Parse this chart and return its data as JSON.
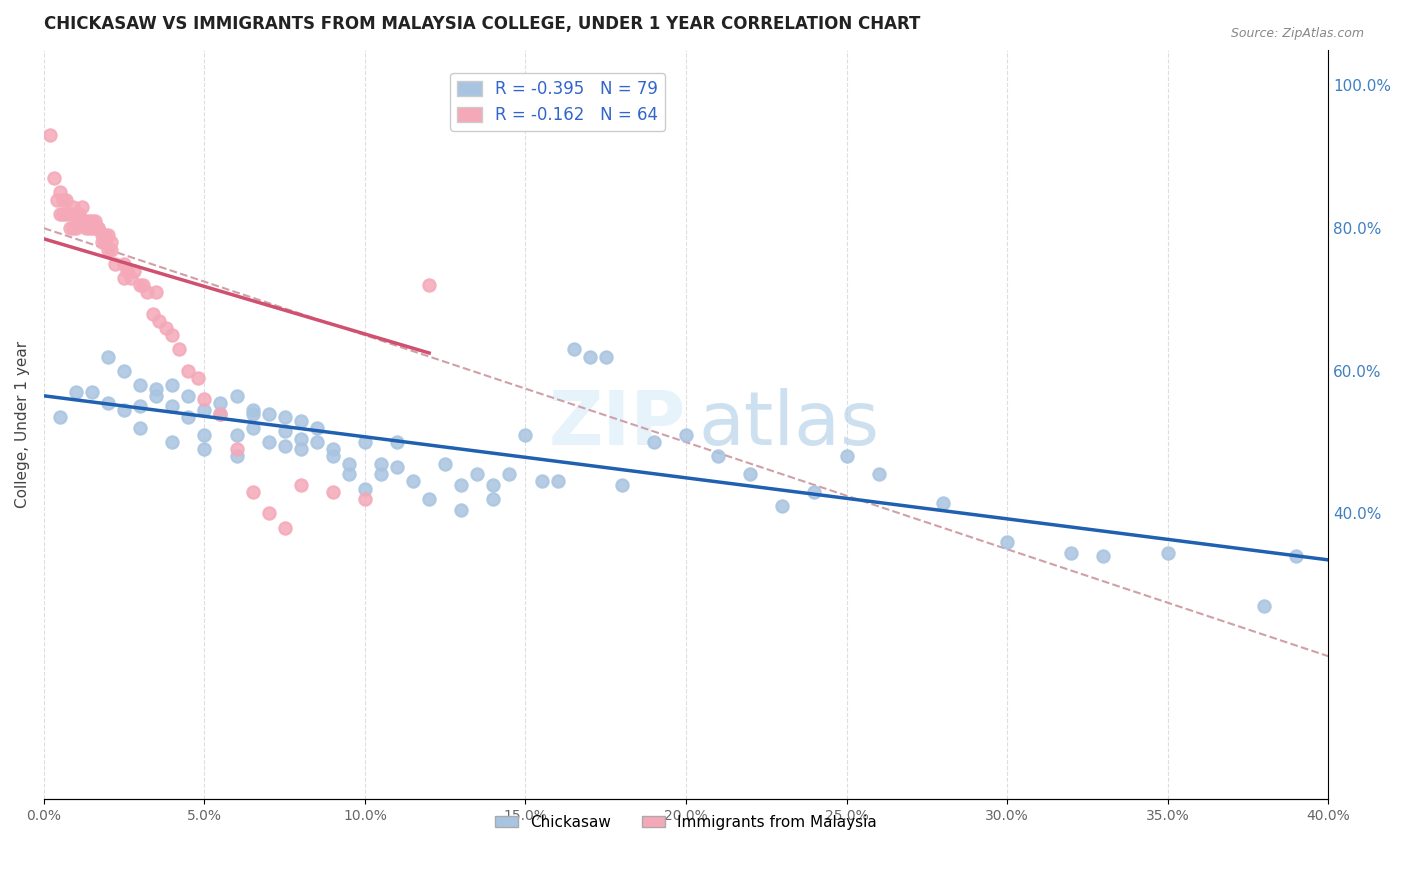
{
  "title": "CHICKASAW VS IMMIGRANTS FROM MALAYSIA COLLEGE, UNDER 1 YEAR CORRELATION CHART",
  "source": "Source: ZipAtlas.com",
  "ylabel": "College, Under 1 year",
  "legend_r1": "-0.395",
  "legend_n1": "79",
  "legend_r2": "-0.162",
  "legend_n2": "64",
  "blue_color": "#a8c4e0",
  "pink_color": "#f4a8b8",
  "blue_line_color": "#2060b0",
  "pink_line_color": "#d05070",
  "dashed_line_color": "#d0a0a8",
  "background_color": "#ffffff",
  "grid_color": "#d0d0d0",
  "x_min": 0.0,
  "x_max": 0.4,
  "y_min": 0.0,
  "y_max": 1.05,
  "blue_scatter_x": [
    0.005,
    0.01,
    0.015,
    0.02,
    0.02,
    0.025,
    0.025,
    0.03,
    0.03,
    0.03,
    0.035,
    0.035,
    0.04,
    0.04,
    0.04,
    0.045,
    0.045,
    0.05,
    0.05,
    0.05,
    0.055,
    0.055,
    0.06,
    0.06,
    0.06,
    0.065,
    0.065,
    0.065,
    0.07,
    0.07,
    0.075,
    0.075,
    0.075,
    0.08,
    0.08,
    0.08,
    0.085,
    0.085,
    0.09,
    0.09,
    0.095,
    0.095,
    0.1,
    0.1,
    0.105,
    0.105,
    0.11,
    0.11,
    0.115,
    0.12,
    0.125,
    0.13,
    0.13,
    0.135,
    0.14,
    0.14,
    0.145,
    0.15,
    0.155,
    0.16,
    0.165,
    0.17,
    0.175,
    0.18,
    0.19,
    0.2,
    0.21,
    0.22,
    0.23,
    0.24,
    0.25,
    0.26,
    0.28,
    0.3,
    0.32,
    0.33,
    0.35,
    0.38,
    0.39
  ],
  "blue_scatter_y": [
    0.535,
    0.57,
    0.57,
    0.555,
    0.62,
    0.545,
    0.6,
    0.52,
    0.58,
    0.55,
    0.565,
    0.575,
    0.5,
    0.58,
    0.55,
    0.535,
    0.565,
    0.49,
    0.545,
    0.51,
    0.54,
    0.555,
    0.48,
    0.51,
    0.565,
    0.545,
    0.52,
    0.54,
    0.5,
    0.54,
    0.515,
    0.535,
    0.495,
    0.49,
    0.53,
    0.505,
    0.52,
    0.5,
    0.48,
    0.49,
    0.455,
    0.47,
    0.435,
    0.5,
    0.455,
    0.47,
    0.5,
    0.465,
    0.445,
    0.42,
    0.47,
    0.405,
    0.44,
    0.455,
    0.44,
    0.42,
    0.455,
    0.51,
    0.445,
    0.445,
    0.63,
    0.62,
    0.62,
    0.44,
    0.5,
    0.51,
    0.48,
    0.455,
    0.41,
    0.43,
    0.48,
    0.455,
    0.415,
    0.36,
    0.345,
    0.34,
    0.345,
    0.27,
    0.34
  ],
  "pink_scatter_x": [
    0.002,
    0.003,
    0.004,
    0.005,
    0.005,
    0.006,
    0.006,
    0.007,
    0.007,
    0.008,
    0.008,
    0.009,
    0.009,
    0.01,
    0.01,
    0.011,
    0.011,
    0.012,
    0.012,
    0.013,
    0.013,
    0.014,
    0.014,
    0.015,
    0.015,
    0.016,
    0.016,
    0.017,
    0.017,
    0.018,
    0.018,
    0.019,
    0.019,
    0.02,
    0.02,
    0.021,
    0.021,
    0.022,
    0.025,
    0.025,
    0.026,
    0.027,
    0.028,
    0.03,
    0.031,
    0.032,
    0.034,
    0.035,
    0.036,
    0.038,
    0.04,
    0.042,
    0.045,
    0.048,
    0.05,
    0.055,
    0.06,
    0.065,
    0.07,
    0.075,
    0.08,
    0.09,
    0.1,
    0.12
  ],
  "pink_scatter_y": [
    0.93,
    0.87,
    0.84,
    0.82,
    0.85,
    0.82,
    0.84,
    0.82,
    0.84,
    0.8,
    0.82,
    0.83,
    0.8,
    0.8,
    0.82,
    0.81,
    0.82,
    0.81,
    0.83,
    0.81,
    0.8,
    0.8,
    0.81,
    0.8,
    0.81,
    0.8,
    0.81,
    0.8,
    0.8,
    0.79,
    0.78,
    0.78,
    0.79,
    0.79,
    0.77,
    0.77,
    0.78,
    0.75,
    0.73,
    0.75,
    0.74,
    0.73,
    0.74,
    0.72,
    0.72,
    0.71,
    0.68,
    0.71,
    0.67,
    0.66,
    0.65,
    0.63,
    0.6,
    0.59,
    0.56,
    0.54,
    0.49,
    0.43,
    0.4,
    0.38,
    0.44,
    0.43,
    0.42,
    0.72
  ],
  "blue_line_x": [
    0.0,
    0.4
  ],
  "blue_line_y": [
    0.565,
    0.335
  ],
  "pink_line_x": [
    0.0,
    0.12
  ],
  "pink_line_y": [
    0.785,
    0.625
  ],
  "dashed_line_x": [
    0.0,
    0.4
  ],
  "dashed_line_y": [
    0.8,
    0.2
  ]
}
